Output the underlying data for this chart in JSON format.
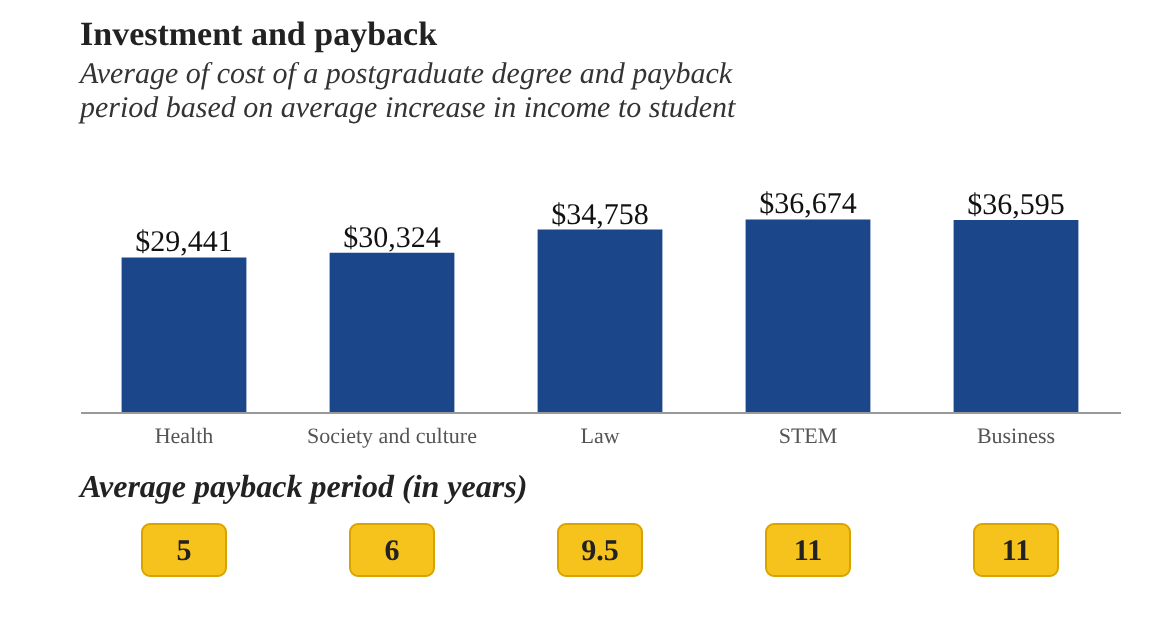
{
  "chart_data": [
    {
      "type": "bar",
      "title": "Investment and payback",
      "subtitle": "Average of cost of a postgraduate degree and payback period based on average increase in income to student",
      "categories": [
        "Health",
        "Society and culture",
        "Law",
        "STEM",
        "Business"
      ],
      "values": [
        29441,
        30324,
        34758,
        36674,
        36595
      ],
      "value_labels": [
        "$29,441",
        "$30,324",
        "$34,758",
        "$36,674",
        "$36,595"
      ],
      "color": "#1b4689"
    },
    {
      "type": "other",
      "title": "Average payback period (in years)",
      "categories": [
        null,
        null,
        null,
        null,
        null
      ],
      "values": [
        5,
        6,
        9.5,
        11,
        11
      ],
      "data_labels": true,
      "color": "#f6c21c"
    }
  ]
}
